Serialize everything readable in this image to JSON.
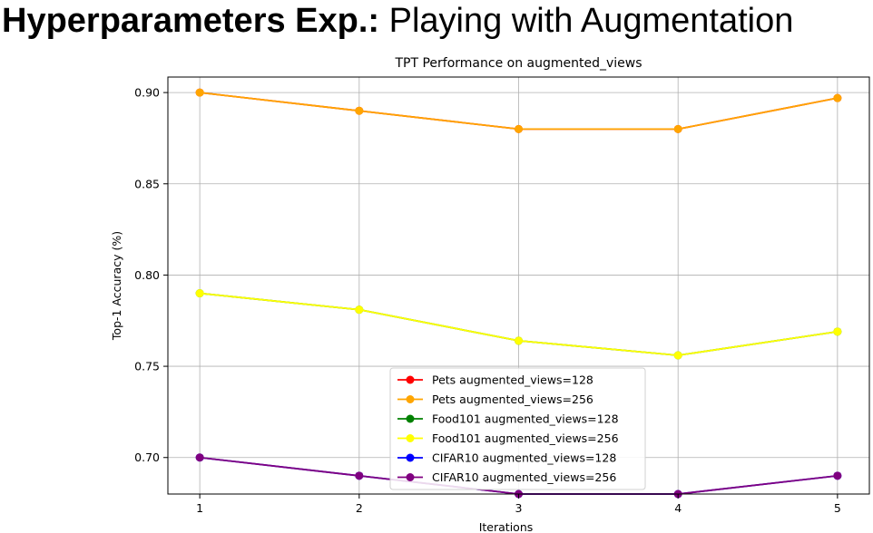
{
  "slide": {
    "title_bold": "Hyperparameters Exp.:",
    "title_rest": " Playing with Augmentation"
  },
  "chart_data": {
    "type": "line",
    "title": "TPT Performance on augmented_views",
    "xlabel": "Iterations",
    "ylabel": "Top-1 Accuracy (%)",
    "x": [
      1,
      2,
      3,
      4,
      5
    ],
    "xlim": [
      0.8,
      5.2
    ],
    "ylim": [
      0.68,
      0.9085
    ],
    "xticks": [
      "1",
      "2",
      "3",
      "4",
      "5"
    ],
    "yticks": [
      "0.70",
      "0.75",
      "0.80",
      "0.85",
      "0.90"
    ],
    "grid": true,
    "legend_position": "lower center",
    "series": [
      {
        "name": "Pets augmented_views=128",
        "color": "#ff0000",
        "values": [
          0.9,
          0.89,
          0.88,
          0.88,
          0.897
        ]
      },
      {
        "name": "Pets augmented_views=256",
        "color": "#ffa500",
        "values": [
          0.9,
          0.89,
          0.88,
          0.88,
          0.897
        ]
      },
      {
        "name": "Food101 augmented_views=128",
        "color": "#008000",
        "values": [
          0.79,
          0.781,
          0.764,
          0.756,
          0.769
        ]
      },
      {
        "name": "Food101 augmented_views=256",
        "color": "#ffff00",
        "values": [
          0.79,
          0.781,
          0.764,
          0.756,
          0.769
        ]
      },
      {
        "name": "CIFAR10 augmented_views=128",
        "color": "#0000ff",
        "values": [
          0.7,
          0.69,
          0.68,
          0.68,
          0.69
        ]
      },
      {
        "name": "CIFAR10 augmented_views=256",
        "color": "#800080",
        "values": [
          0.7,
          0.69,
          0.68,
          0.68,
          0.69
        ]
      }
    ]
  }
}
